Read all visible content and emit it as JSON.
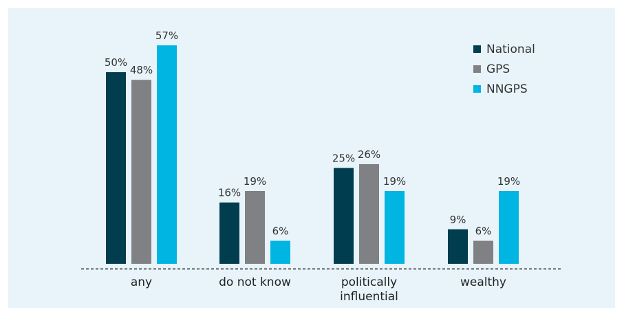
{
  "chart_data": {
    "type": "bar",
    "categories": [
      [
        "any"
      ],
      [
        "do not know"
      ],
      [
        "politically",
        "influential"
      ],
      [
        "wealthy"
      ]
    ],
    "series": [
      {
        "name": "National",
        "color": "#003d4f",
        "values": [
          50,
          16,
          25,
          9
        ]
      },
      {
        "name": "GPS",
        "color": "#808184",
        "values": [
          48,
          19,
          26,
          6
        ]
      },
      {
        "name": "NNGPS",
        "color": "#00b5e2",
        "values": [
          57,
          6,
          19,
          19
        ]
      }
    ],
    "value_suffix": "%",
    "ylim": [
      0,
      60
    ],
    "legend_position": "top-right",
    "grid": false,
    "background": "#e8f4fa"
  }
}
